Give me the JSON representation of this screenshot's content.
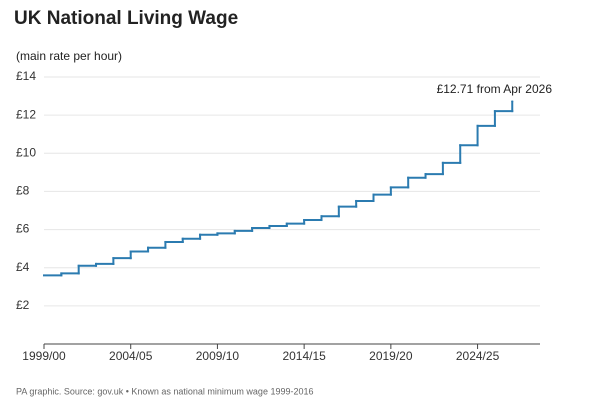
{
  "chart_data": {
    "type": "step-line",
    "title": "UK National Living Wage",
    "subtitle": "(main rate per hour)",
    "annotation": "£12.71 from Apr 2026",
    "source": "PA graphic. Source: gov.uk • Known as national minimum wage 1999-2016",
    "x": [
      1999,
      2000,
      2001,
      2002,
      2003,
      2004,
      2005,
      2006,
      2007,
      2008,
      2009,
      2010,
      2011,
      2012,
      2013,
      2014,
      2015,
      2016,
      2017,
      2018,
      2019,
      2020,
      2021,
      2022,
      2023,
      2024,
      2025,
      2026
    ],
    "values": [
      3.6,
      3.7,
      4.1,
      4.2,
      4.5,
      4.85,
      5.05,
      5.35,
      5.52,
      5.73,
      5.8,
      5.93,
      6.08,
      6.19,
      6.31,
      6.5,
      6.7,
      7.2,
      7.5,
      7.83,
      8.21,
      8.72,
      8.91,
      9.5,
      10.42,
      11.44,
      12.21,
      12.71
    ],
    "color": "#2b7bb0",
    "xlim": [
      1999,
      2027.6
    ],
    "xticks": [
      {
        "value": 1999,
        "label": "1999/00"
      },
      {
        "value": 2004,
        "label": "2004/05"
      },
      {
        "value": 2009,
        "label": "2009/10"
      },
      {
        "value": 2014,
        "label": "2014/15"
      },
      {
        "value": 2019,
        "label": "2019/20"
      },
      {
        "value": 2024,
        "label": "2024/25"
      }
    ],
    "ylim": [
      0,
      14
    ],
    "yticks": [
      {
        "value": 2,
        "label": "£2"
      },
      {
        "value": 4,
        "label": "£4"
      },
      {
        "value": 6,
        "label": "£6"
      },
      {
        "value": 8,
        "label": "£8"
      },
      {
        "value": 10,
        "label": "£10"
      },
      {
        "value": 12,
        "label": "£12"
      },
      {
        "value": 14,
        "label": "£14"
      }
    ],
    "grid": true
  }
}
